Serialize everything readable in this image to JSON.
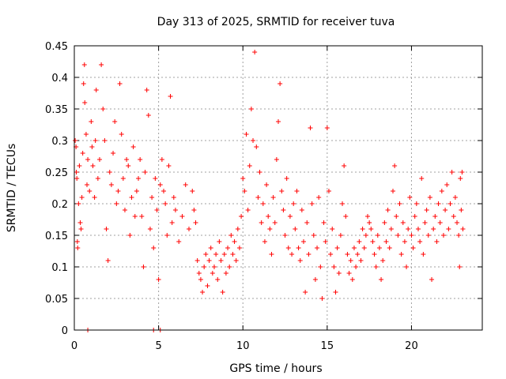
{
  "chart_data": {
    "type": "scatter",
    "title": "Day 313 of 2025, SRMTID for receiver tuva",
    "xlabel": "GPS time / hours",
    "ylabel": "SRMTID / TECUs",
    "xlim": [
      0,
      24.2
    ],
    "ylim": [
      0,
      0.45
    ],
    "xticks": [
      0,
      5,
      10,
      15,
      20
    ],
    "yticks": [
      0,
      0.05,
      0.1,
      0.15,
      0.2,
      0.25,
      0.3,
      0.35,
      0.4,
      0.45
    ],
    "xtick_labels": [
      "0",
      "5",
      "10",
      "15",
      "20"
    ],
    "ytick_labels": [
      "0",
      "0.05",
      "0.1",
      "0.15",
      "0.2",
      "0.25",
      "0.3",
      "0.35",
      "0.4",
      "0.45"
    ],
    "grid": true,
    "marker": "+",
    "color": "#ff0000",
    "series": [
      {
        "points": [
          [
            0.05,
            0.3
          ],
          [
            0.1,
            0.29
          ],
          [
            0.12,
            0.25
          ],
          [
            0.15,
            0.24
          ],
          [
            0.18,
            0.14
          ],
          [
            0.2,
            0.13
          ],
          [
            0.25,
            0.2
          ],
          [
            0.3,
            0.26
          ],
          [
            0.35,
            0.17
          ],
          [
            0.4,
            0.16
          ],
          [
            0.45,
            0.21
          ],
          [
            0.5,
            0.28
          ],
          [
            0.55,
            0.39
          ],
          [
            0.6,
            0.42
          ],
          [
            0.62,
            0.36
          ],
          [
            0.7,
            0.31
          ],
          [
            0.75,
            0.23
          ],
          [
            0.8,
            0.27
          ],
          [
            0.9,
            0.22
          ],
          [
            1.0,
            0.33
          ],
          [
            1.05,
            0.29
          ],
          [
            1.1,
            0.26
          ],
          [
            1.2,
            0.21
          ],
          [
            1.25,
            0.3
          ],
          [
            1.3,
            0.38
          ],
          [
            1.4,
            0.24
          ],
          [
            1.5,
            0.27
          ],
          [
            1.6,
            0.42
          ],
          [
            1.7,
            0.35
          ],
          [
            1.8,
            0.3
          ],
          [
            1.9,
            0.16
          ],
          [
            2.0,
            0.11
          ],
          [
            2.1,
            0.25
          ],
          [
            2.2,
            0.23
          ],
          [
            2.3,
            0.28
          ],
          [
            2.4,
            0.33
          ],
          [
            2.5,
            0.2
          ],
          [
            2.6,
            0.22
          ],
          [
            2.7,
            0.39
          ],
          [
            2.8,
            0.31
          ],
          [
            2.9,
            0.24
          ],
          [
            3.0,
            0.19
          ],
          [
            3.1,
            0.27
          ],
          [
            3.2,
            0.26
          ],
          [
            3.3,
            0.15
          ],
          [
            3.4,
            0.21
          ],
          [
            3.5,
            0.29
          ],
          [
            3.6,
            0.18
          ],
          [
            3.7,
            0.22
          ],
          [
            3.8,
            0.24
          ],
          [
            3.9,
            0.27
          ],
          [
            4.0,
            0.18
          ],
          [
            4.1,
            0.1
          ],
          [
            4.2,
            0.25
          ],
          [
            4.3,
            0.38
          ],
          [
            4.4,
            0.34
          ],
          [
            4.5,
            0.16
          ],
          [
            4.6,
            0.21
          ],
          [
            4.7,
            0.13
          ],
          [
            4.8,
            0.24
          ],
          [
            4.9,
            0.19
          ],
          [
            5.0,
            0.08
          ],
          [
            5.1,
            0.23
          ],
          [
            5.2,
            0.27
          ],
          [
            5.3,
            0.22
          ],
          [
            5.4,
            0.2
          ],
          [
            5.5,
            0.15
          ],
          [
            5.6,
            0.26
          ],
          [
            5.7,
            0.37
          ],
          [
            5.8,
            0.17
          ],
          [
            5.9,
            0.21
          ],
          [
            6.0,
            0.19
          ],
          [
            6.2,
            0.14
          ],
          [
            6.4,
            0.18
          ],
          [
            6.6,
            0.23
          ],
          [
            6.8,
            0.16
          ],
          [
            7.0,
            0.22
          ],
          [
            7.1,
            0.19
          ],
          [
            7.2,
            0.17
          ],
          [
            7.3,
            0.11
          ],
          [
            7.4,
            0.09
          ],
          [
            7.5,
            0.08
          ],
          [
            7.6,
            0.06
          ],
          [
            7.7,
            0.1
          ],
          [
            7.8,
            0.12
          ],
          [
            7.9,
            0.07
          ],
          [
            8.0,
            0.11
          ],
          [
            8.1,
            0.13
          ],
          [
            8.2,
            0.09
          ],
          [
            8.3,
            0.1
          ],
          [
            8.4,
            0.12
          ],
          [
            8.5,
            0.08
          ],
          [
            8.6,
            0.14
          ],
          [
            8.7,
            0.11
          ],
          [
            8.8,
            0.06
          ],
          [
            8.9,
            0.12
          ],
          [
            9.0,
            0.09
          ],
          [
            9.1,
            0.13
          ],
          [
            9.2,
            0.1
          ],
          [
            9.3,
            0.15
          ],
          [
            9.4,
            0.12
          ],
          [
            9.5,
            0.14
          ],
          [
            9.6,
            0.11
          ],
          [
            9.7,
            0.16
          ],
          [
            9.8,
            0.13
          ],
          [
            9.9,
            0.18
          ],
          [
            10.0,
            0.24
          ],
          [
            10.1,
            0.22
          ],
          [
            10.2,
            0.31
          ],
          [
            10.3,
            0.19
          ],
          [
            10.4,
            0.26
          ],
          [
            10.5,
            0.35
          ],
          [
            10.6,
            0.3
          ],
          [
            10.7,
            0.44
          ],
          [
            10.8,
            0.29
          ],
          [
            10.9,
            0.21
          ],
          [
            11.0,
            0.25
          ],
          [
            11.1,
            0.17
          ],
          [
            11.2,
            0.2
          ],
          [
            11.3,
            0.14
          ],
          [
            11.4,
            0.23
          ],
          [
            11.5,
            0.18
          ],
          [
            11.6,
            0.16
          ],
          [
            11.7,
            0.12
          ],
          [
            11.8,
            0.21
          ],
          [
            11.9,
            0.17
          ],
          [
            12.0,
            0.27
          ],
          [
            12.1,
            0.33
          ],
          [
            12.2,
            0.39
          ],
          [
            12.3,
            0.22
          ],
          [
            12.4,
            0.19
          ],
          [
            12.5,
            0.15
          ],
          [
            12.6,
            0.24
          ],
          [
            12.7,
            0.13
          ],
          [
            12.8,
            0.18
          ],
          [
            12.9,
            0.12
          ],
          [
            13.0,
            0.2
          ],
          [
            13.1,
            0.16
          ],
          [
            13.2,
            0.22
          ],
          [
            13.3,
            0.13
          ],
          [
            13.4,
            0.11
          ],
          [
            13.5,
            0.19
          ],
          [
            13.6,
            0.14
          ],
          [
            13.7,
            0.06
          ],
          [
            13.8,
            0.17
          ],
          [
            13.9,
            0.12
          ],
          [
            14.0,
            0.32
          ],
          [
            14.1,
            0.2
          ],
          [
            14.2,
            0.15
          ],
          [
            14.3,
            0.08
          ],
          [
            14.4,
            0.13
          ],
          [
            14.5,
            0.21
          ],
          [
            14.6,
            0.1
          ],
          [
            14.7,
            0.05
          ],
          [
            14.8,
            0.17
          ],
          [
            14.9,
            0.14
          ],
          [
            15.0,
            0.32
          ],
          [
            15.1,
            0.22
          ],
          [
            15.2,
            0.12
          ],
          [
            15.3,
            0.16
          ],
          [
            15.4,
            0.1
          ],
          [
            15.5,
            0.06
          ],
          [
            15.6,
            0.13
          ],
          [
            15.7,
            0.09
          ],
          [
            15.8,
            0.15
          ],
          [
            15.9,
            0.2
          ],
          [
            16.0,
            0.26
          ],
          [
            16.1,
            0.18
          ],
          [
            16.2,
            0.12
          ],
          [
            16.3,
            0.09
          ],
          [
            16.4,
            0.11
          ],
          [
            16.5,
            0.08
          ],
          [
            16.6,
            0.13
          ],
          [
            16.7,
            0.1
          ],
          [
            16.8,
            0.12
          ],
          [
            16.9,
            0.14
          ],
          [
            17.0,
            0.11
          ],
          [
            17.1,
            0.16
          ],
          [
            17.2,
            0.13
          ],
          [
            17.3,
            0.15
          ],
          [
            17.4,
            0.18
          ],
          [
            17.5,
            0.17
          ],
          [
            17.6,
            0.16
          ],
          [
            17.7,
            0.14
          ],
          [
            17.8,
            0.12
          ],
          [
            17.9,
            0.1
          ],
          [
            18.0,
            0.15
          ],
          [
            18.1,
            0.13
          ],
          [
            18.2,
            0.08
          ],
          [
            18.3,
            0.11
          ],
          [
            18.4,
            0.17
          ],
          [
            18.5,
            0.14
          ],
          [
            18.6,
            0.19
          ],
          [
            18.7,
            0.13
          ],
          [
            18.8,
            0.16
          ],
          [
            18.9,
            0.22
          ],
          [
            19.0,
            0.26
          ],
          [
            19.1,
            0.18
          ],
          [
            19.2,
            0.15
          ],
          [
            19.3,
            0.2
          ],
          [
            19.4,
            0.12
          ],
          [
            19.5,
            0.17
          ],
          [
            19.6,
            0.14
          ],
          [
            19.7,
            0.1
          ],
          [
            19.8,
            0.16
          ],
          [
            19.9,
            0.21
          ],
          [
            20.0,
            0.15
          ],
          [
            20.1,
            0.13
          ],
          [
            20.2,
            0.18
          ],
          [
            20.3,
            0.2
          ],
          [
            20.4,
            0.16
          ],
          [
            20.5,
            0.14
          ],
          [
            20.6,
            0.24
          ],
          [
            20.7,
            0.12
          ],
          [
            20.8,
            0.17
          ],
          [
            20.9,
            0.19
          ],
          [
            21.0,
            0.15
          ],
          [
            21.1,
            0.21
          ],
          [
            21.2,
            0.08
          ],
          [
            21.3,
            0.16
          ],
          [
            21.4,
            0.18
          ],
          [
            21.5,
            0.14
          ],
          [
            21.6,
            0.2
          ],
          [
            21.7,
            0.17
          ],
          [
            21.8,
            0.22
          ],
          [
            21.9,
            0.15
          ],
          [
            22.0,
            0.19
          ],
          [
            22.1,
            0.23
          ],
          [
            22.2,
            0.16
          ],
          [
            22.3,
            0.2
          ],
          [
            22.4,
            0.25
          ],
          [
            22.5,
            0.18
          ],
          [
            22.6,
            0.21
          ],
          [
            22.7,
            0.17
          ],
          [
            22.8,
            0.15
          ],
          [
            22.85,
            0.1
          ],
          [
            22.9,
            0.24
          ],
          [
            22.95,
            0.19
          ],
          [
            23.0,
            0.25
          ],
          [
            23.05,
            0.16
          ],
          [
            0.8,
            0.0
          ],
          [
            4.7,
            0.0
          ],
          [
            5.1,
            0.0
          ]
        ]
      }
    ]
  }
}
